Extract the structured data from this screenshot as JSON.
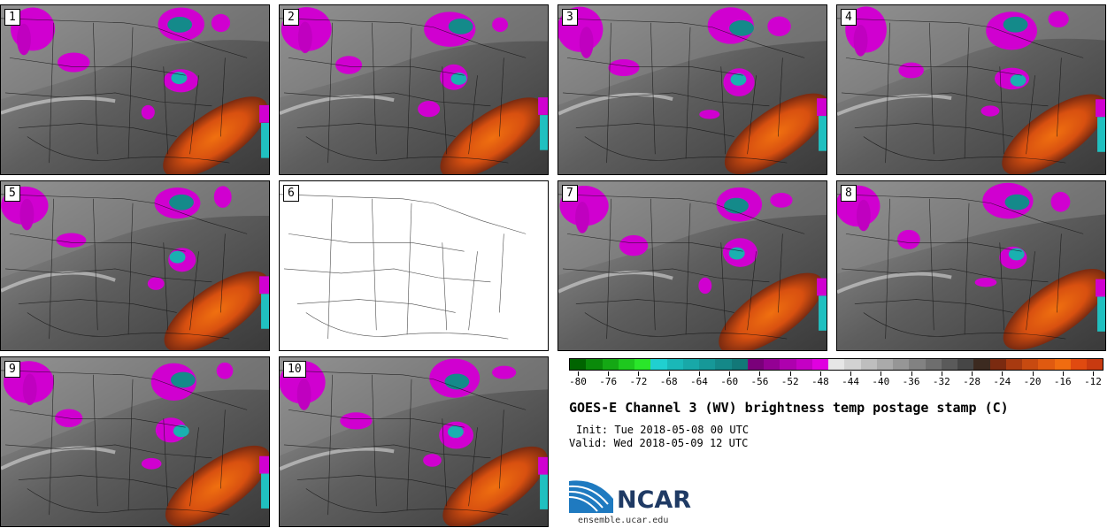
{
  "panels": [
    {
      "label": "1",
      "blank": false
    },
    {
      "label": "2",
      "blank": false
    },
    {
      "label": "3",
      "blank": false
    },
    {
      "label": "4",
      "blank": false
    },
    {
      "label": "5",
      "blank": false
    },
    {
      "label": "6",
      "blank": true
    },
    {
      "label": "7",
      "blank": false
    },
    {
      "label": "8",
      "blank": false
    },
    {
      "label": "9",
      "blank": false
    },
    {
      "label": "10",
      "blank": false
    }
  ],
  "colorbar": {
    "colors": [
      "#006400",
      "#0a8a0a",
      "#14a814",
      "#1ec81e",
      "#2ae62a",
      "#20d0d0",
      "#1ab8b8",
      "#18a8a8",
      "#169898",
      "#148888",
      "#127878",
      "#7a007a",
      "#940094",
      "#ae00ae",
      "#c400c4",
      "#e000e0",
      "#e6e6e6",
      "#d2d2d2",
      "#bebebe",
      "#aaaaaa",
      "#969696",
      "#828282",
      "#6e6e6e",
      "#5a5a5a",
      "#464646",
      "#3c2a20",
      "#7a2a10",
      "#a83a10",
      "#c84a10",
      "#e05a10",
      "#f06c10",
      "#e04a10",
      "#c83a10"
    ],
    "ticks": [
      "-80",
      "-76",
      "-72",
      "-68",
      "-64",
      "-60",
      "-56",
      "-52",
      "-48",
      "-44",
      "-40",
      "-36",
      "-32",
      "-28",
      "-24",
      "-20",
      "-16",
      "-12"
    ]
  },
  "title": "GOES-E Channel 3 (WV) brightness temp postage stamp (C)",
  "init": "Init: Tue 2018-05-08 00 UTC",
  "valid": "Valid: Wed 2018-05-09 12 UTC",
  "logo": {
    "text": "NCAR",
    "url": "ensemble.ucar.edu",
    "color": "#1f3a64",
    "accent": "#1f7ac0"
  }
}
